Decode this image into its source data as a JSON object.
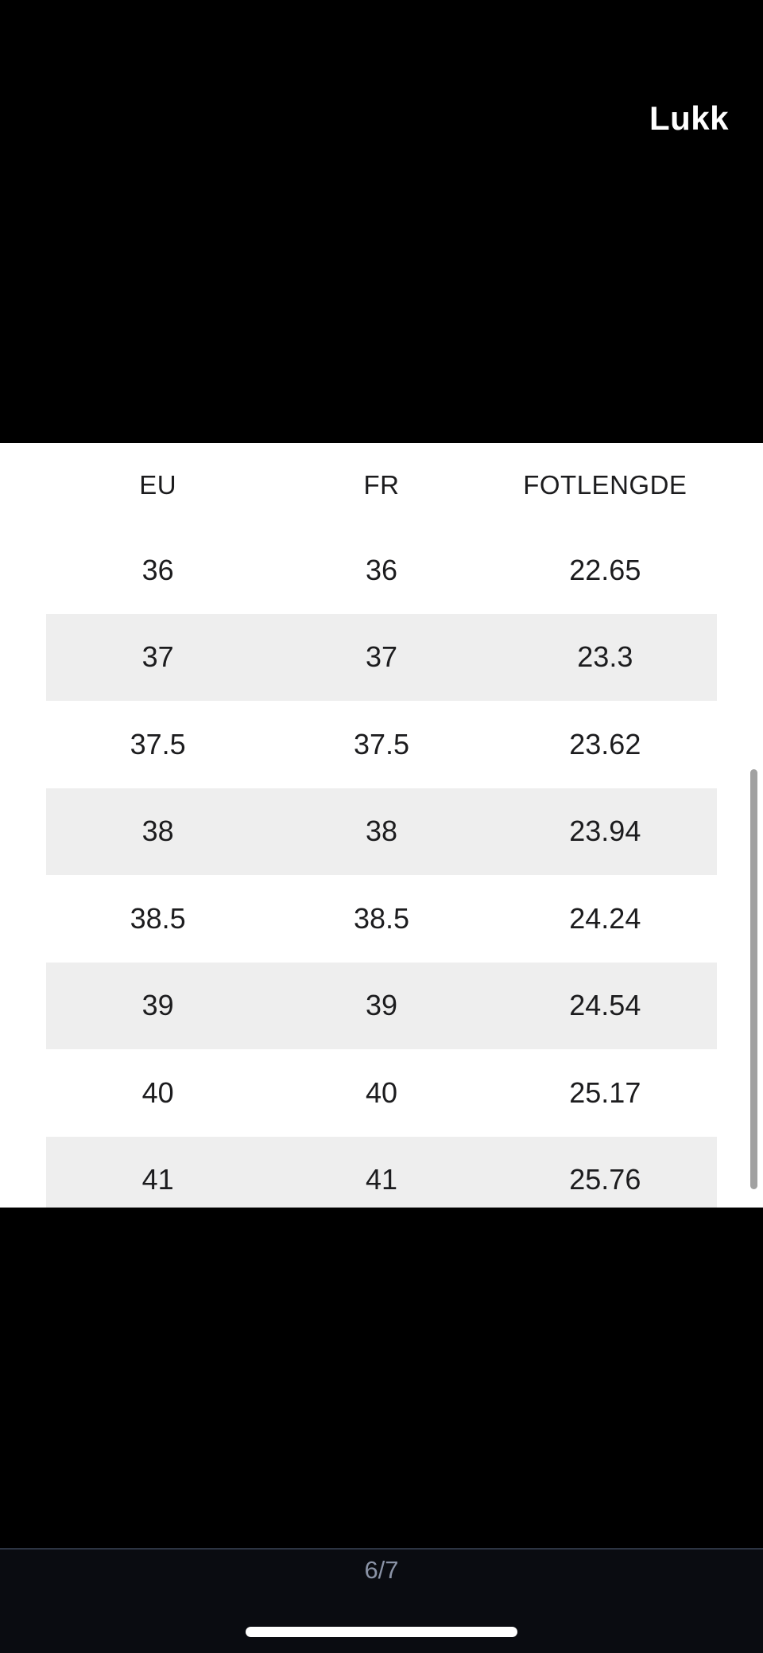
{
  "header": {
    "close_label": "Lukk"
  },
  "size_table": {
    "columns": [
      "EU",
      "FR",
      "FOTLENGDE"
    ],
    "rows": [
      [
        "36",
        "36",
        "22.65"
      ],
      [
        "37",
        "37",
        "23.3"
      ],
      [
        "37.5",
        "37.5",
        "23.62"
      ],
      [
        "38",
        "38",
        "23.94"
      ],
      [
        "38.5",
        "38.5",
        "24.24"
      ],
      [
        "39",
        "39",
        "24.54"
      ],
      [
        "40",
        "40",
        "25.17"
      ],
      [
        "41",
        "41",
        "25.76"
      ]
    ]
  },
  "footer": {
    "page_indicator": "6/7"
  },
  "colors": {
    "backdrop": "#000000",
    "sheet_background": "#FFFFFF",
    "row_stripe": "#EEEEEE",
    "cell_text": "#1C1C1E",
    "close_text": "#FFFFFF",
    "scrollbar": "#A1A1A1",
    "footer_background": "#0A0C11",
    "divider": "#2C3442",
    "page_indicator_text": "#8A93A6",
    "home_indicator": "#FFFFFF"
  }
}
